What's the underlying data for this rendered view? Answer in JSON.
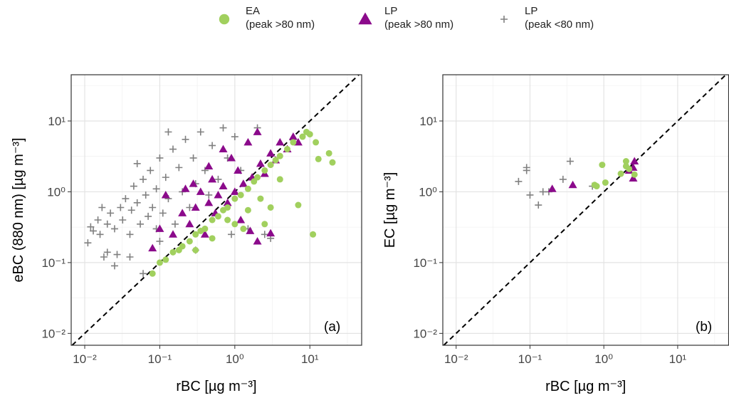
{
  "chart_data": [
    {
      "type": "scatter",
      "panel_label": "(a)",
      "xlabel": "rBC [µg m⁻³]",
      "ylabel": "eBC (880 nm) [µg m⁻³]",
      "log_x": true,
      "log_y": true,
      "grid": true,
      "xlim": [
        0.0066,
        49
      ],
      "ylim": [
        0.0068,
        45
      ],
      "xticks": [
        {
          "value": 0.01,
          "label": "10⁻²"
        },
        {
          "value": 0.1,
          "label": "10⁻¹"
        },
        {
          "value": 1,
          "label": "10⁰"
        },
        {
          "value": 10,
          "label": "10¹"
        }
      ],
      "yticks": [
        {
          "value": 0.01,
          "label": "10⁻²"
        },
        {
          "value": 0.1,
          "label": "10⁻¹"
        },
        {
          "value": 1,
          "label": "10⁰"
        },
        {
          "value": 10,
          "label": "10¹"
        }
      ],
      "series": [
        {
          "name": "EA\n(peak >80 nm)",
          "marker": "circle",
          "color": "#a1d05e",
          "x": [
            0.08,
            0.1,
            0.12,
            0.15,
            0.18,
            0.2,
            0.25,
            0.3,
            0.35,
            0.4,
            0.5,
            0.6,
            0.7,
            0.8,
            1.0,
            1.2,
            1.5,
            1.8,
            2.0,
            2.5,
            3.0,
            3.5,
            4.0,
            5.0,
            6.0,
            8.0,
            10.0,
            12.0,
            13.0,
            18.0,
            20.0,
            7.0,
            11.0,
            1.0,
            0.5,
            1.3,
            2.5,
            0.8,
            4.0,
            9.0,
            0.3,
            1.5,
            2.2,
            3.0
          ],
          "values": [
            0.07,
            0.1,
            0.11,
            0.14,
            0.15,
            0.17,
            0.2,
            0.25,
            0.28,
            0.3,
            0.4,
            0.45,
            0.55,
            0.6,
            0.8,
            0.9,
            1.1,
            1.4,
            1.6,
            2.0,
            2.4,
            2.8,
            3.2,
            4.0,
            5.0,
            6.0,
            6.5,
            5.0,
            2.9,
            3.5,
            2.6,
            0.65,
            0.25,
            0.35,
            0.22,
            0.3,
            0.35,
            0.4,
            1.5,
            7.0,
            0.15,
            0.55,
            0.8,
            0.6
          ]
        },
        {
          "name": "LP\n(peak >80 nm)",
          "marker": "triangle",
          "color": "#8b0a8b",
          "x": [
            0.08,
            0.1,
            0.12,
            0.15,
            0.2,
            0.22,
            0.25,
            0.3,
            0.35,
            0.4,
            0.45,
            0.5,
            0.55,
            0.6,
            0.7,
            0.8,
            0.9,
            1.0,
            1.1,
            1.3,
            1.5,
            1.7,
            2.0,
            2.2,
            2.5,
            3.0,
            3.5,
            4.0,
            5.0,
            6.0,
            7.0,
            2.0,
            3.0,
            1.2,
            0.45,
            0.7,
            1.6,
            0.28
          ],
          "values": [
            0.16,
            0.3,
            0.9,
            0.25,
            0.5,
            1.1,
            0.35,
            0.6,
            1.0,
            0.25,
            0.7,
            1.5,
            0.5,
            0.9,
            1.2,
            0.7,
            3.0,
            1.0,
            2.0,
            1.3,
            5.0,
            1.6,
            7.0,
            2.5,
            1.8,
            3.5,
            2.8,
            5.0,
            4.0,
            6.0,
            5.0,
            0.2,
            0.26,
            0.4,
            2.3,
            4.0,
            0.28,
            1.3
          ]
        },
        {
          "name": "LP\n(peak <80 nm)",
          "marker": "plus",
          "color": "#808080",
          "x": [
            0.011,
            0.012,
            0.013,
            0.015,
            0.016,
            0.018,
            0.02,
            0.022,
            0.025,
            0.027,
            0.03,
            0.032,
            0.035,
            0.04,
            0.042,
            0.045,
            0.05,
            0.055,
            0.06,
            0.065,
            0.07,
            0.075,
            0.08,
            0.09,
            0.1,
            0.11,
            0.12,
            0.13,
            0.15,
            0.16,
            0.18,
            0.2,
            0.22,
            0.25,
            0.28,
            0.3,
            0.35,
            0.4,
            0.45,
            0.5,
            0.6,
            0.7,
            0.8,
            0.9,
            1.0,
            1.2,
            1.5,
            2.0,
            2.5,
            3.0,
            0.025,
            0.06,
            0.04,
            0.02,
            0.1,
            0.3,
            0.017,
            0.05,
            0.13,
            0.09
          ],
          "values": [
            0.19,
            0.32,
            0.28,
            0.4,
            0.25,
            0.12,
            0.35,
            0.5,
            0.3,
            0.13,
            0.6,
            0.4,
            0.8,
            0.25,
            0.55,
            1.2,
            0.7,
            0.35,
            1.5,
            0.9,
            0.45,
            2.0,
            0.6,
            1.1,
            3.0,
            0.5,
            1.6,
            0.8,
            4.0,
            0.35,
            2.2,
            1.0,
            5.5,
            0.6,
            3.0,
            1.3,
            7.0,
            2.0,
            0.9,
            4.5,
            1.5,
            8.0,
            3.0,
            0.25,
            6.0,
            2.0,
            0.3,
            8.0,
            0.25,
            0.22,
            0.09,
            0.07,
            0.12,
            0.14,
            0.2,
            0.15,
            0.6,
            2.5,
            7.0,
            0.3
          ]
        }
      ]
    },
    {
      "type": "scatter",
      "panel_label": "(b)",
      "xlabel": "rBC [µg m⁻³]",
      "ylabel": "EC [µg m⁻³]",
      "log_x": true,
      "log_y": true,
      "grid": true,
      "xlim": [
        0.0066,
        49
      ],
      "ylim": [
        0.0068,
        45
      ],
      "xticks": [
        {
          "value": 0.01,
          "label": "10⁻²"
        },
        {
          "value": 0.1,
          "label": "10⁻¹"
        },
        {
          "value": 1,
          "label": "10⁰"
        },
        {
          "value": 10,
          "label": "10¹"
        }
      ],
      "yticks": [
        {
          "value": 0.01,
          "label": "10⁻²"
        },
        {
          "value": 0.1,
          "label": "10⁻¹"
        },
        {
          "value": 1,
          "label": "10⁰"
        },
        {
          "value": 10,
          "label": "10¹"
        }
      ],
      "series": [
        {
          "marker": "circle",
          "color": "#a1d05e",
          "x": [
            0.75,
            0.8,
            0.95,
            1.05,
            1.7,
            2.0,
            2.2,
            2.6,
            2.0
          ],
          "values": [
            1.25,
            1.2,
            2.4,
            1.35,
            1.8,
            2.7,
            2.1,
            1.75,
            2.3
          ]
        },
        {
          "marker": "triangle",
          "color": "#8b0a8b",
          "x": [
            0.2,
            0.38,
            2.2,
            2.5,
            2.6,
            2.5
          ],
          "values": [
            1.1,
            1.25,
            2.0,
            1.55,
            2.7,
            2.2
          ]
        },
        {
          "marker": "plus",
          "color": "#808080",
          "x": [
            0.07,
            0.09,
            0.09,
            0.1,
            0.13,
            0.15,
            0.18,
            0.28,
            0.35,
            0.7
          ],
          "values": [
            1.4,
            2.0,
            2.2,
            0.9,
            0.65,
            1.0,
            1.0,
            1.5,
            2.7,
            1.2
          ]
        }
      ]
    }
  ]
}
